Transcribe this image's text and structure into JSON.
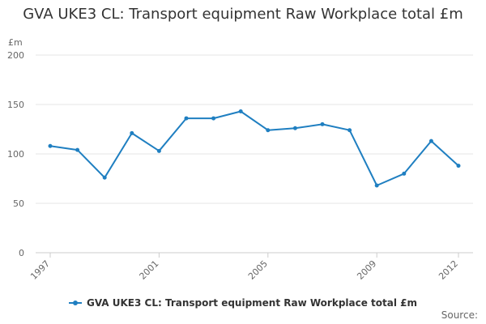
{
  "chart_data": {
    "type": "line",
    "title": "GVA UKE3 CL: Transport equipment Raw Workplace total £m",
    "ylabel": "£m",
    "xlabel": "",
    "x": [
      1997,
      1998,
      1999,
      2000,
      2001,
      2002,
      2003,
      2004,
      2005,
      2006,
      2007,
      2008,
      2009,
      2010,
      2011,
      2012
    ],
    "x_tick_labels": [
      "1997",
      "2001",
      "2005",
      "2009",
      "2012"
    ],
    "x_tick_values": [
      1997,
      2001,
      2005,
      2009,
      2012
    ],
    "y_ticks": [
      0,
      50,
      100,
      150,
      200
    ],
    "ylim": [
      0,
      200
    ],
    "grid": true,
    "legend_position": "bottom",
    "series": [
      {
        "name": "GVA UKE3 CL: Transport equipment Raw Workplace total £m",
        "color": "#1f7fc1",
        "values": [
          108,
          104,
          76,
          121,
          103,
          136,
          136,
          143,
          124,
          126,
          130,
          124,
          68,
          80,
          113,
          88
        ]
      }
    ]
  },
  "source_label": "Source:"
}
